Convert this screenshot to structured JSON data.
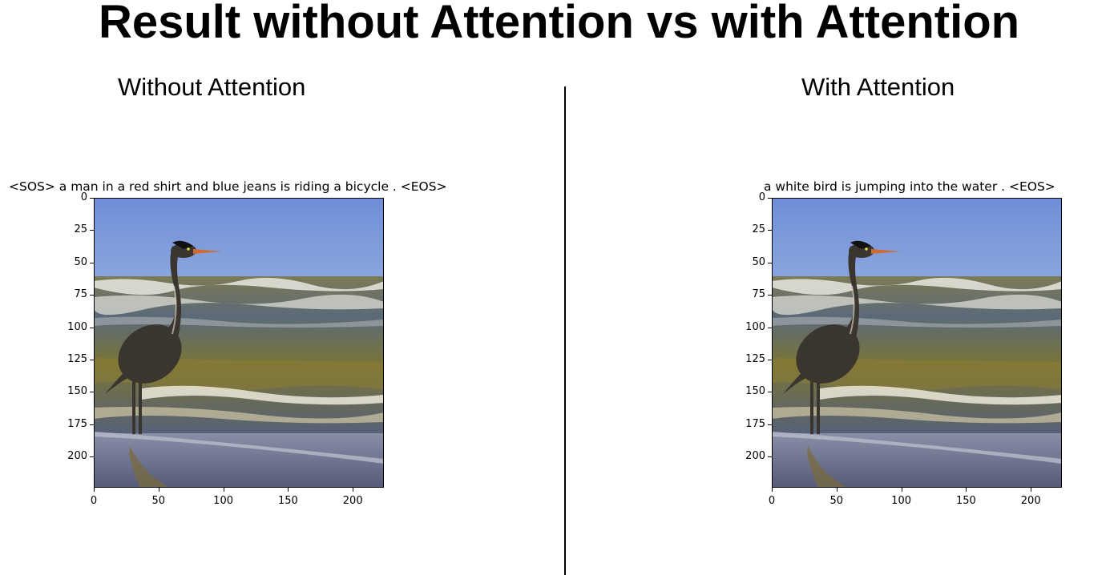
{
  "title": "Result without Attention vs with Attention",
  "panels": [
    {
      "heading": "Without Attention",
      "caption": "<SOS> a man in a red shirt and blue jeans is riding a bicycle . <EOS>",
      "image_description": "heron-standing-on-beach-photo"
    },
    {
      "heading": "With Attention",
      "caption": "a white bird is jumping into the water . <EOS>",
      "image_description": "heron-standing-on-beach-photo"
    }
  ],
  "axes": {
    "y_ticks": [
      "0",
      "25",
      "50",
      "75",
      "100",
      "125",
      "150",
      "175",
      "200"
    ],
    "x_ticks": [
      "0",
      "50",
      "100",
      "150",
      "200"
    ],
    "x_range": [
      0,
      224
    ],
    "y_range": [
      0,
      224
    ]
  },
  "colors": {
    "sky_top": "#6f8ed8",
    "sky_bottom": "#8aa6de",
    "sea": "#4f5a5a",
    "sand": "#6c6f85",
    "heron": "#3b3530"
  }
}
